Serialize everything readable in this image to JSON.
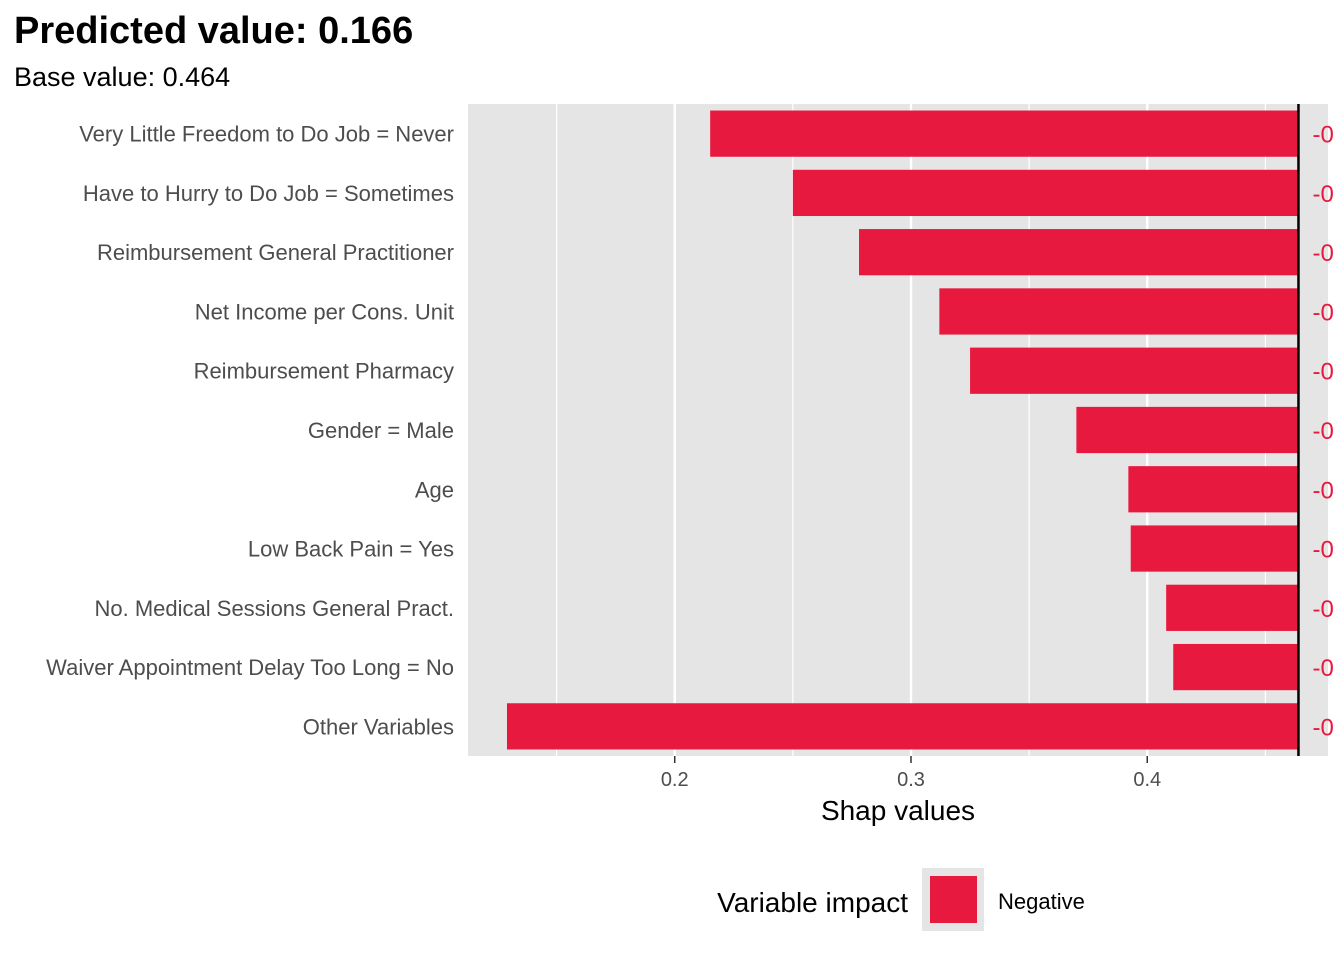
{
  "chart_data": {
    "type": "bar",
    "orientation": "horizontal",
    "title": "Predicted value: 0.166",
    "subtitle": "Base value: 0.464",
    "xlabel": "Shap values",
    "ylabel": "",
    "base_value": 0.464,
    "predicted_value": 0.166,
    "xlim": [
      0.1125,
      0.4765
    ],
    "xticks": [
      0.2,
      0.3,
      0.4
    ],
    "xtick_labels": [
      "0.2",
      "0.3",
      "0.4"
    ],
    "grid": true,
    "legend_position": "bottom",
    "legend_title": "Variable impact",
    "legend_entries": [
      "Negative"
    ],
    "colors": {
      "negative": "#E8193F",
      "panel_background": "#E5E5E5",
      "grid": "#FFFFFF",
      "base_line": "#000000"
    },
    "categories": [
      "Very Little Freedom to Do Job = Never",
      "Have to Hurry to Do Job = Sometimes",
      "Reimbursement General Practitioner",
      "Net Income per Cons. Unit",
      "Reimbursement Pharmacy",
      "Gender = Male",
      "Age",
      "Low Back Pain = Yes",
      "No. Medical Sessions General Pract.",
      "Waiver Appointment Delay Too Long = No",
      "Other Variables"
    ],
    "series": [
      {
        "impact": "Negative",
        "starts": [
          0.464,
          0.464,
          0.464,
          0.464,
          0.464,
          0.464,
          0.464,
          0.464,
          0.464,
          0.464,
          0.464
        ],
        "ends": [
          0.215,
          0.25,
          0.278,
          0.312,
          0.325,
          0.37,
          0.392,
          0.393,
          0.408,
          0.411,
          0.129
        ]
      }
    ],
    "value_labels": [
      "-0",
      "-0",
      "-0",
      "-0",
      "-0",
      "-0",
      "-0",
      "-0",
      "-0",
      "-0",
      "-0"
    ]
  }
}
